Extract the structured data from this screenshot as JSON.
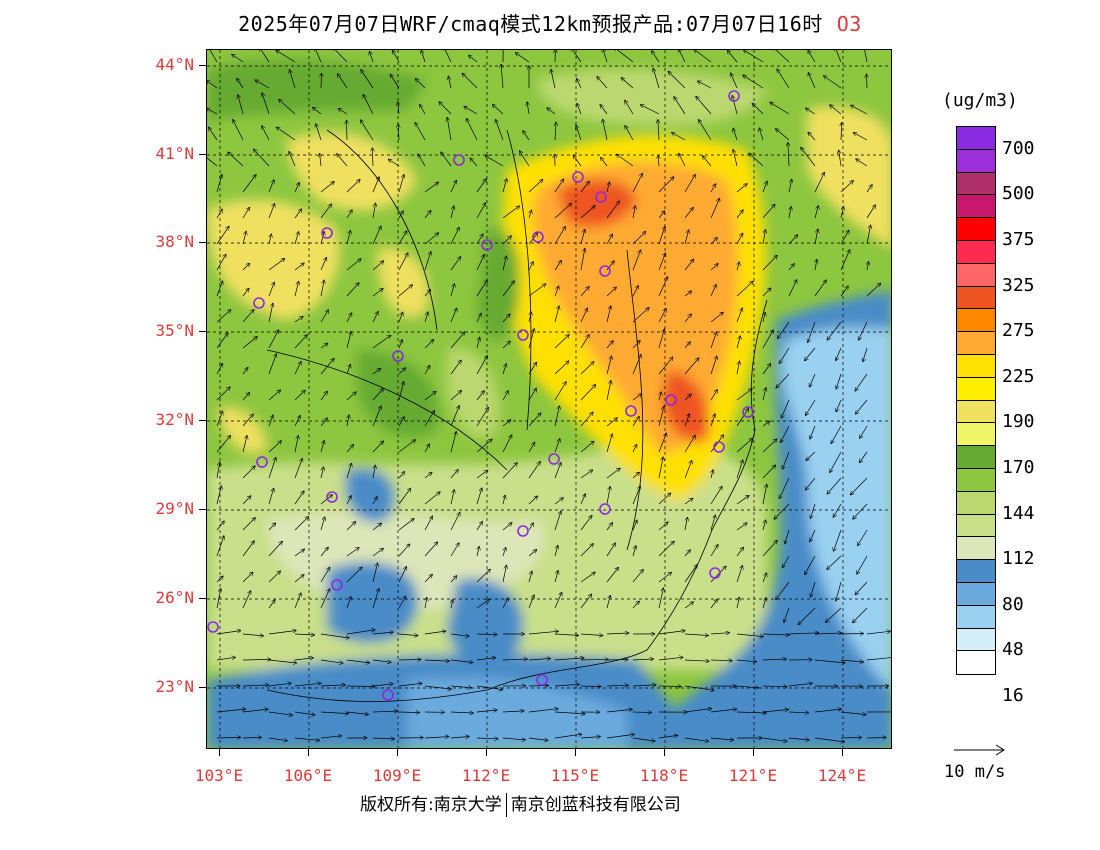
{
  "title": {
    "text": "2025年07月07日WRF/cmaq模式12km预报产品:07月07日16时",
    "pollutant": "O3"
  },
  "lat_labels": [
    "44°N",
    "41°N",
    "38°N",
    "35°N",
    "32°N",
    "29°N",
    "26°N",
    "23°N"
  ],
  "lon_labels": [
    "103°E",
    "106°E",
    "109°E",
    "112°E",
    "115°E",
    "118°E",
    "121°E",
    "124°E"
  ],
  "colorbar": {
    "unit": "(ug/m3)",
    "labels": [
      "700",
      "500",
      "375",
      "325",
      "275",
      "225",
      "190",
      "170",
      "144",
      "112",
      "80",
      "48",
      "16"
    ],
    "colors": [
      "#8a2be2",
      "#9b30d8",
      "#b0306a",
      "#c8186e",
      "#ff0000",
      "#ff2a50",
      "#ff6666",
      "#ee5522",
      "#ff8800",
      "#ffaa33",
      "#ffe000",
      "#ffee00",
      "#f0e060",
      "#eef566",
      "#66aa33",
      "#8dc63f",
      "#bbd870",
      "#c9df8a",
      "#dde6b8",
      "#4a8cc8",
      "#6aaadd",
      "#9ad0f0",
      "#d4eefa",
      "#ffffff"
    ]
  },
  "vector_reference": {
    "label": "10 m/s"
  },
  "footer": {
    "left": "版权所有:南京大学",
    "right": "南京创蓝科技有限公司"
  },
  "stations_icon": "circle-station-icon"
}
